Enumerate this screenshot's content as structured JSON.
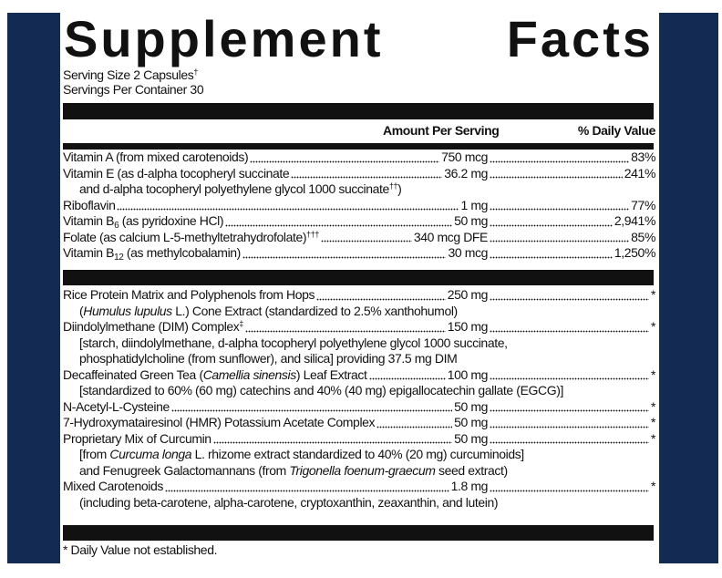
{
  "colors": {
    "background_panel": "#132b52",
    "label": "#ffffff",
    "ink": "#111111"
  },
  "title": {
    "word1": "Supplement",
    "word2": "Facts"
  },
  "serving": {
    "size": "Serving Size 2 Capsules",
    "size_mark": "†",
    "per_container": "Servings Per Container 30"
  },
  "header": {
    "amount": "Amount Per Serving",
    "dv": "% Daily Value"
  },
  "vitamins": [
    {
      "name": [
        {
          "t": "Vitamin A (from mixed carotenoids)"
        }
      ],
      "amount": "750 mcg",
      "dv": "83%"
    },
    {
      "name": [
        {
          "t": "Vitamin E (as d-alpha tocopheryl succinate"
        }
      ],
      "amount": "36.2 mg",
      "dv": "241%",
      "sub": [
        [
          {
            "t": "and d-alpha tocopheryl polyethylene glycol 1000 succinate"
          },
          {
            "t": "††",
            "sup": true
          },
          {
            "t": ")"
          }
        ]
      ]
    },
    {
      "name": [
        {
          "t": "Riboflavin"
        }
      ],
      "amount": "1 mg",
      "dv": "77%"
    },
    {
      "name": [
        {
          "t": "Vitamin B"
        },
        {
          "t": "6",
          "sub": true
        },
        {
          "t": " (as pyridoxine HCl)"
        }
      ],
      "amount": "50 mg",
      "dv": "2,941%"
    },
    {
      "name": [
        {
          "t": "Folate (as calcium L-5-methyltetrahydrofolate)"
        },
        {
          "t": "†††",
          "sup": true
        }
      ],
      "amount": "340 mcg DFE",
      "dv": "85%"
    },
    {
      "name": [
        {
          "t": "Vitamin B"
        },
        {
          "t": "12",
          "sub": true
        },
        {
          "t": " (as methylcobalamin)"
        }
      ],
      "amount": "30 mcg",
      "dv": "1,250%"
    }
  ],
  "others": [
    {
      "name": [
        {
          "t": "Rice Protein Matrix and Polyphenols from Hops"
        }
      ],
      "amount": "250 mg",
      "dv": "*",
      "sub": [
        [
          {
            "t": "("
          },
          {
            "t": "Humulus lupulus",
            "i": true
          },
          {
            "t": " L.) Cone Extract (standardized to 2.5% xanthohumol)"
          }
        ]
      ]
    },
    {
      "name": [
        {
          "t": "Diindolylmethane (DIM) Complex"
        },
        {
          "t": "‡",
          "sup": true
        }
      ],
      "amount": "150 mg",
      "dv": "*",
      "sub": [
        [
          {
            "t": "[starch, diindolylmethane, d-alpha tocopheryl polyethylene glycol 1000 succinate,"
          }
        ],
        [
          {
            "t": "phosphatidylcholine (from sunflower), and silica] providing 37.5 mg DIM"
          }
        ]
      ]
    },
    {
      "name": [
        {
          "t": "Decaffeinated Green Tea ("
        },
        {
          "t": "Camellia sinensis",
          "i": true
        },
        {
          "t": ") Leaf Extract"
        }
      ],
      "amount": "100 mg",
      "dv": "*",
      "sub": [
        [
          {
            "t": "[standardized to 60% (60 mg) catechins and 40% (40 mg) epigallocatechin gallate (EGCG)]"
          }
        ]
      ]
    },
    {
      "name": [
        {
          "t": "N-Acetyl-L-Cysteine"
        }
      ],
      "amount": "50 mg",
      "dv": "*"
    },
    {
      "name": [
        {
          "t": "7-Hydroxymatairesinol (HMR) Potassium Acetate Complex"
        }
      ],
      "amount": "50 mg",
      "dv": "*"
    },
    {
      "name": [
        {
          "t": "Proprietary Mix of Curcumin"
        }
      ],
      "amount": "50 mg",
      "dv": "*",
      "sub": [
        [
          {
            "t": "[from "
          },
          {
            "t": "Curcuma longa",
            "i": true
          },
          {
            "t": " L. rhizome extract standardized to 40% (20 mg) curcuminoids]"
          }
        ],
        [
          {
            "t": "and Fenugreek Galactomannans (from "
          },
          {
            "t": "Trigonella foenum-graecum",
            "i": true
          },
          {
            "t": " seed extract)"
          }
        ]
      ]
    },
    {
      "name": [
        {
          "t": "Mixed Carotenoids"
        }
      ],
      "amount": "1.8 mg",
      "dv": "*",
      "sub": [
        [
          {
            "t": "(including beta-carotene, alpha-carotene, cryptoxanthin, zeaxanthin, and lutein)"
          }
        ]
      ]
    }
  ],
  "footnote": "* Daily Value not established."
}
